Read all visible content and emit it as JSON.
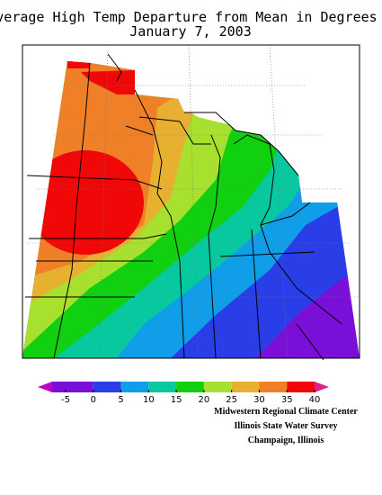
{
  "title": "Average High Temp Departure from Mean in Degrees F",
  "subtitle": "January 7, 2003",
  "legend": {
    "ticks": [
      -5,
      0,
      5,
      10,
      15,
      20,
      25,
      30,
      35,
      40
    ],
    "low_color": "#c000c0",
    "high_color": "#e0208a",
    "below_first_color": "#7a10d8",
    "colors": [
      "#7a10d8",
      "#2a3ee8",
      "#109ee8",
      "#08c8a0",
      "#10d010",
      "#a8e030",
      "#e8b030",
      "#f08028",
      "#f00808"
    ]
  },
  "credits": [
    "Midwestern Regional Climate Center",
    "Illinois State Water Survey",
    "Champaign, Illinois"
  ]
}
